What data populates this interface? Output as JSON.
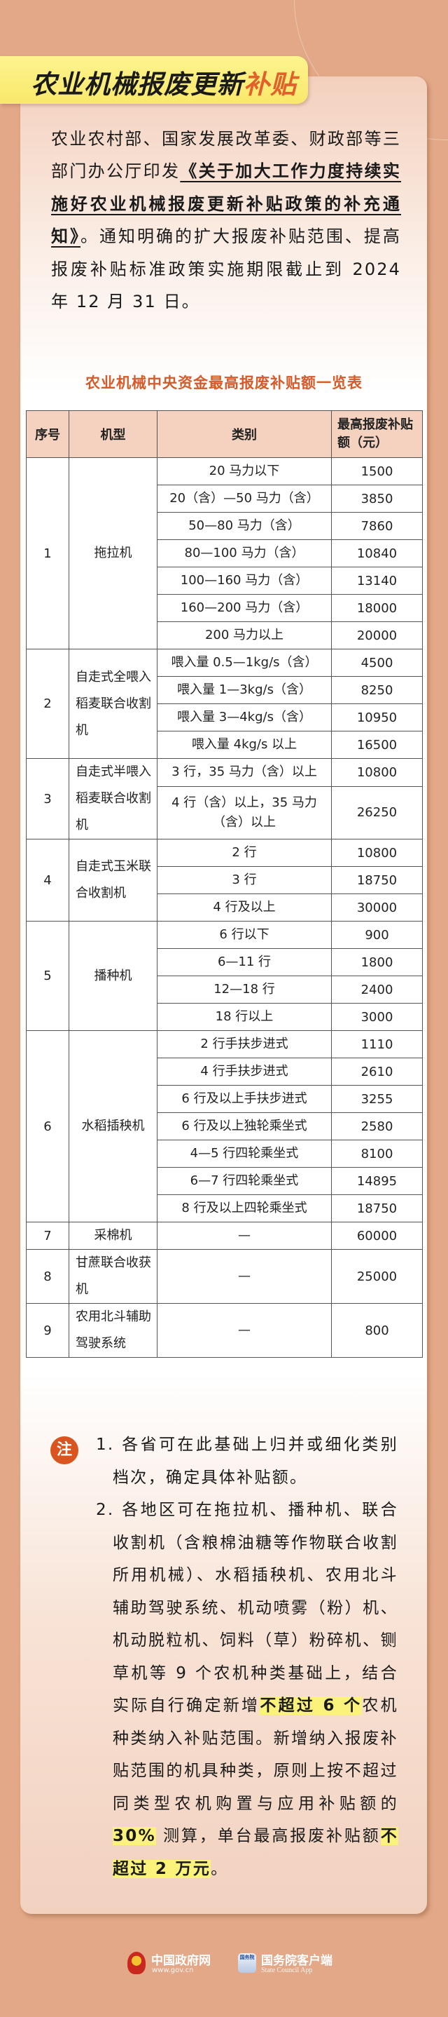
{
  "header": {
    "title_main": "农业机械报废更新",
    "title_accent": "补贴"
  },
  "intro": {
    "pre": "农业农村部、国家发展改革委、财政部等三部门办公厅印发",
    "doc_title": "《关于加大工作力度持续实施好农业机械报废更新补贴政策的补充通知》",
    "post": "。通知明确的扩大报废补贴范围、提高报废补贴标准政策实施期限截止到 2024 年 12 月 31 日。"
  },
  "table": {
    "title": "农业机械中央资金最高报废补贴额一览表",
    "headers": [
      "序号",
      "机型",
      "类别",
      "最高报废补贴额（元）"
    ],
    "groups": [
      {
        "no": "1",
        "type": "拖拉机",
        "items": [
          {
            "category": "20 马力以下",
            "amount": "1500"
          },
          {
            "category": "20（含）—50 马力（含）",
            "amount": "3850"
          },
          {
            "category": "50—80 马力（含）",
            "amount": "7860"
          },
          {
            "category": "80—100 马力（含）",
            "amount": "10840"
          },
          {
            "category": "100—160 马力（含）",
            "amount": "13140"
          },
          {
            "category": "160—200 马力（含）",
            "amount": "18000"
          },
          {
            "category": "200 马力以上",
            "amount": "20000"
          }
        ]
      },
      {
        "no": "2",
        "type": "自走式全喂入稻麦联合收割机",
        "items": [
          {
            "category": "喂入量 0.5—1kg/s（含）",
            "amount": "4500"
          },
          {
            "category": "喂入量 1—3kg/s（含）",
            "amount": "8250"
          },
          {
            "category": "喂入量 3—4kg/s（含）",
            "amount": "10950"
          },
          {
            "category": "喂入量 4kg/s 以上",
            "amount": "16500"
          }
        ]
      },
      {
        "no": "3",
        "type": "自走式半喂入稻麦联合收割机",
        "items": [
          {
            "category": "3 行，35 马力（含）以上",
            "amount": "10800"
          },
          {
            "category": "4 行（含）以上，35 马力（含）以上",
            "amount": "26250"
          }
        ]
      },
      {
        "no": "4",
        "type": "自走式玉米联合收割机",
        "items": [
          {
            "category": "2 行",
            "amount": "10800"
          },
          {
            "category": "3 行",
            "amount": "18750"
          },
          {
            "category": "4 行及以上",
            "amount": "30000"
          }
        ]
      },
      {
        "no": "5",
        "type": "播种机",
        "items": [
          {
            "category": "6 行以下",
            "amount": "900"
          },
          {
            "category": "6—11 行",
            "amount": "1800"
          },
          {
            "category": "12—18 行",
            "amount": "2400"
          },
          {
            "category": "18 行以上",
            "amount": "3000"
          }
        ]
      },
      {
        "no": "6",
        "type": "水稻插秧机",
        "items": [
          {
            "category": "2 行手扶步进式",
            "amount": "1110"
          },
          {
            "category": "4 行手扶步进式",
            "amount": "2610"
          },
          {
            "category": "6 行及以上手扶步进式",
            "amount": "3255"
          },
          {
            "category": "6 行及以上独轮乘坐式",
            "amount": "2580"
          },
          {
            "category": "4—5 行四轮乘坐式",
            "amount": "8100"
          },
          {
            "category": "6—7 行四轮乘坐式",
            "amount": "14895"
          },
          {
            "category": "8 行及以上四轮乘坐式",
            "amount": "18750"
          }
        ]
      },
      {
        "no": "7",
        "type": "采棉机",
        "items": [
          {
            "category": "—",
            "amount": "60000"
          }
        ]
      },
      {
        "no": "8",
        "type": "甘蔗联合收获机",
        "items": [
          {
            "category": "—",
            "amount": "25000"
          }
        ]
      },
      {
        "no": "9",
        "type": "农用北斗辅助驾驶系统",
        "items": [
          {
            "category": "—",
            "amount": "800"
          }
        ]
      }
    ]
  },
  "notes": {
    "badge": "注",
    "item1": "1. 各省可在此基础上归并或细化类别档次，确定具体补贴额。",
    "item2_a": "2. 各地区可在拖拉机、播种机、联合收割机（含粮棉油糖等作物联合收割所用机械）、水稻插秧机、农用北斗辅助驾驶系统、机动喷雾（粉）机、机动脱粒机、饲料（草）粉碎机、铡草机等 9 个农机种类基础上，结合实际自行确定新增",
    "item2_hl1": "不超过 6 个",
    "item2_b": "农机种类纳入补贴范围。新增纳入报废补贴范围的机具种类，原则上按不超过同类型农机购置与应用补贴额的 ",
    "item2_hl2": "30%",
    "item2_c": " 测算，单台最高报废补贴额",
    "item2_hl3": "不超过 2 万元",
    "item2_d": "。"
  },
  "footer": {
    "logo1_name": "中国政府网",
    "logo1_sub": "www.gov.cn",
    "logo2_badge": "国务院",
    "logo2_name": "国务院客户端",
    "logo2_sub": "State Council App"
  },
  "colors": {
    "accent": "#d9541e",
    "banner": "#fbef7f",
    "background": "#e2a887",
    "highlight": "#fbf27b",
    "table_header": "#f4d2bf"
  }
}
